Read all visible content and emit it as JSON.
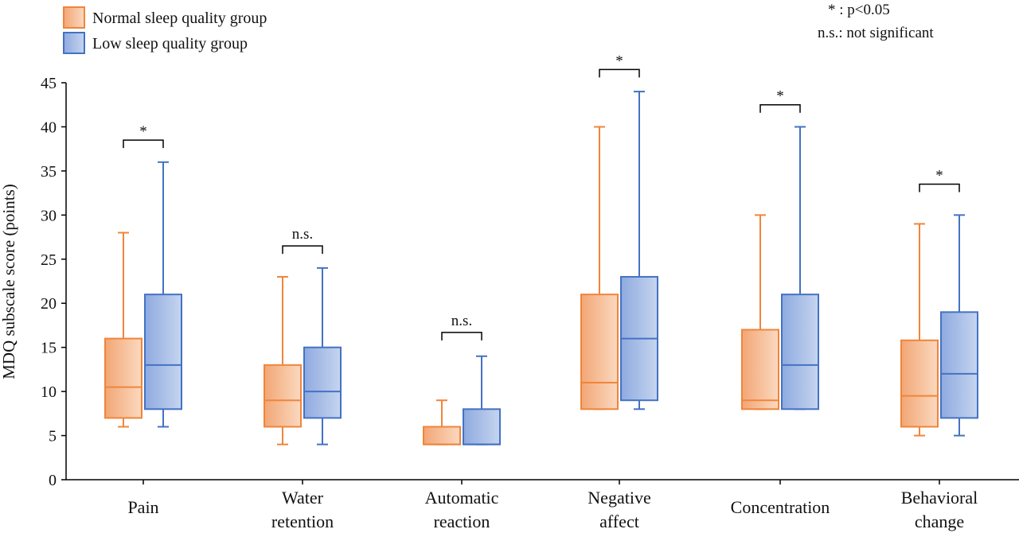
{
  "legend": {
    "items": [
      {
        "label": "Normal sleep quality group",
        "color": "#f0853a"
      },
      {
        "label": "Low sleep quality group",
        "color": "#4472c4"
      }
    ]
  },
  "notes": [
    "* : p<0.05",
    "n.s.: not significant"
  ],
  "chart_data": {
    "type": "box",
    "ylabel": "MDQ subscale score (points)",
    "ylim": [
      0,
      45
    ],
    "yticks": [
      0,
      5,
      10,
      15,
      20,
      25,
      30,
      35,
      40,
      45
    ],
    "categories": [
      [
        "Pain"
      ],
      [
        "Water",
        "retention"
      ],
      [
        "Automatic",
        "reaction"
      ],
      [
        "Negative",
        "affect"
      ],
      [
        "Concentration"
      ],
      [
        "Behavioral",
        "change"
      ]
    ],
    "series": [
      {
        "name": "Normal sleep quality group",
        "color": "#f0853a",
        "fill_light": "#fbd9c0",
        "fill_dark": "#f2a675",
        "boxes": [
          {
            "min": 6,
            "q1": 7,
            "median": 10.5,
            "q3": 16,
            "max": 28
          },
          {
            "min": 4,
            "q1": 6,
            "median": 9,
            "q3": 13,
            "max": 23
          },
          {
            "min": 4,
            "q1": 4,
            "median": 4,
            "q3": 6,
            "max": 9
          },
          {
            "min": 8,
            "q1": 8,
            "median": 11,
            "q3": 21,
            "max": 40
          },
          {
            "min": 8,
            "q1": 8,
            "median": 9,
            "q3": 17,
            "max": 30
          },
          {
            "min": 5,
            "q1": 6,
            "median": 9.5,
            "q3": 15.8,
            "max": 29
          }
        ]
      },
      {
        "name": "Low sleep quality group",
        "color": "#4472c4",
        "fill_light": "#c6d5ef",
        "fill_dark": "#8eaadf",
        "boxes": [
          {
            "min": 6,
            "q1": 8,
            "median": 13,
            "q3": 21,
            "max": 36
          },
          {
            "min": 4,
            "q1": 7,
            "median": 10,
            "q3": 15,
            "max": 24
          },
          {
            "min": 4,
            "q1": 4,
            "median": 4,
            "q3": 8,
            "max": 14
          },
          {
            "min": 8,
            "q1": 9,
            "median": 16,
            "q3": 23,
            "max": 44
          },
          {
            "min": 8,
            "q1": 8,
            "median": 13,
            "q3": 21,
            "max": 40
          },
          {
            "min": 5,
            "q1": 7,
            "median": 12,
            "q3": 19,
            "max": 30
          }
        ]
      }
    ],
    "significance": [
      {
        "label": "*",
        "y": 38.5
      },
      {
        "label": "n.s.",
        "y": 26.5
      },
      {
        "label": "n.s.",
        "y": 16.7
      },
      {
        "label": "*",
        "y": 46.5
      },
      {
        "label": "*",
        "y": 42.5
      },
      {
        "label": "*",
        "y": 33.5
      }
    ]
  }
}
